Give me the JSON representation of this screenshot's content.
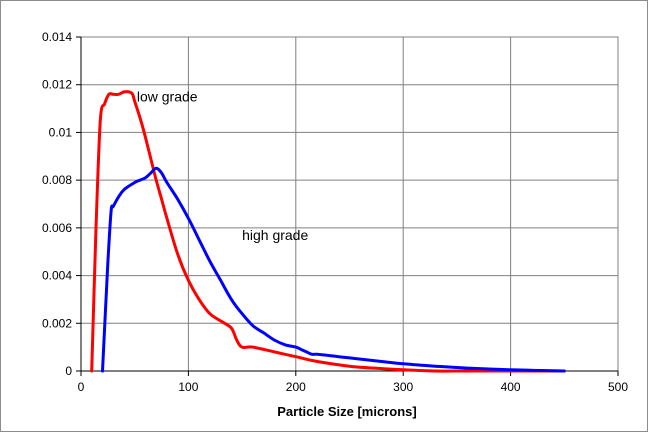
{
  "chart_data": {
    "type": "line",
    "title": "",
    "xlabel": "Particle Size [microns]",
    "ylabel": "",
    "xlim": [
      0,
      500
    ],
    "ylim": [
      0,
      0.014
    ],
    "grid": true,
    "legend": "none",
    "x_ticks": [
      0,
      100,
      200,
      300,
      400,
      500
    ],
    "x_tick_labels": [
      "0",
      "100",
      "200",
      "300",
      "400",
      "500"
    ],
    "y_ticks": [
      0,
      0.002,
      0.004,
      0.006,
      0.008,
      0.01,
      0.012,
      0.014
    ],
    "y_tick_labels": [
      "0",
      "0.002",
      "0.004",
      "0.006",
      "0.008",
      "0.01",
      "0.012",
      "0.014"
    ],
    "series": [
      {
        "color": "#ff0000",
        "x": [
          10,
          14,
          18,
          22,
          26,
          30,
          35,
          40,
          45,
          48,
          50,
          55,
          60,
          65,
          70,
          75,
          80,
          90,
          100,
          110,
          120,
          130,
          140,
          145,
          150,
          160,
          180,
          200,
          220,
          250,
          280,
          300,
          330,
          360,
          400,
          450
        ],
        "y": [
          0,
          0.006,
          0.0105,
          0.0112,
          0.0116,
          0.0116,
          0.0116,
          0.0117,
          0.0117,
          0.0116,
          0.0113,
          0.0106,
          0.0098,
          0.0089,
          0.008,
          0.0072,
          0.0064,
          0.0049,
          0.0038,
          0.003,
          0.0024,
          0.0021,
          0.0018,
          0.0013,
          0.001,
          0.001,
          0.0008,
          0.0006,
          0.0004,
          0.0002,
          0.0001,
          5e-05,
          0.0,
          0.0,
          0.0,
          0.0
        ]
      },
      {
        "color": "#0000ff",
        "x": [
          20,
          25,
          28,
          30,
          35,
          40,
          50,
          55,
          60,
          65,
          70,
          75,
          80,
          90,
          100,
          110,
          120,
          130,
          140,
          150,
          160,
          170,
          180,
          190,
          200,
          205,
          210,
          215,
          220,
          240,
          260,
          280,
          300,
          330,
          360,
          400,
          430,
          450
        ],
        "y": [
          0,
          0.0045,
          0.0067,
          0.0069,
          0.0073,
          0.0076,
          0.0079,
          0.008,
          0.0081,
          0.0083,
          0.0085,
          0.0083,
          0.0079,
          0.0072,
          0.0064,
          0.0055,
          0.0046,
          0.0038,
          0.003,
          0.0024,
          0.0019,
          0.0016,
          0.0013,
          0.0011,
          0.001,
          0.0009,
          0.0008,
          0.0007,
          0.0007,
          0.0006,
          0.0005,
          0.0004,
          0.0003,
          0.0002,
          0.00012,
          5e-05,
          2e-05,
          0.0
        ]
      }
    ],
    "annotations": [
      {
        "text": "low grade",
        "x": 52,
        "y": 0.0113
      },
      {
        "text": "high grade",
        "x": 150,
        "y": 0.0055
      }
    ]
  }
}
